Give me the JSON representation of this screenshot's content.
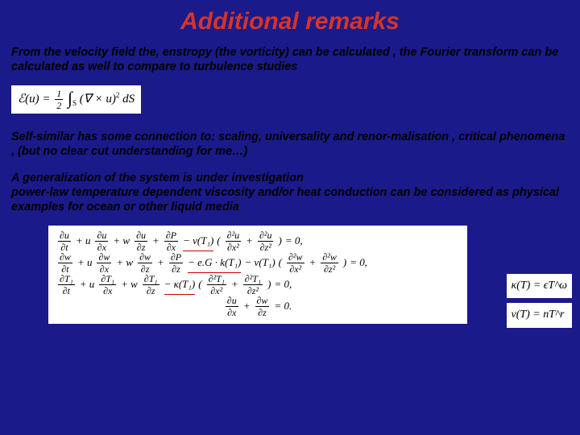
{
  "title": "Additional remarks",
  "para1": "From the velocity field the, enstropy (the vorticity) can be calculated , the Fourier transform can be calculated as well to compare to turbulence studies",
  "para2": "Self-similar has some connection to: scaling, universality and renor-malisation , critical phenomena , (but no clear cut understanding for me…)",
  "para3": "A generalization of the system is under investigation\npower-law temperature dependent viscosity and/or heat conduction can be considered as physical examples for ocean or other liquid media",
  "enstrophy": {
    "lhs": "ℰ(u)",
    "eq": "=",
    "half_num": "1",
    "half_den": "2",
    "int": "∫",
    "int_sub": "S",
    "body": "(∇ × u)",
    "sq": "2",
    "dS": "dS"
  },
  "equations": {
    "row1": {
      "t1_num": "∂u",
      "t1_den": "∂t",
      "p1": "+ u",
      "t2_num": "∂u",
      "t2_den": "∂x",
      "p2": "+ w",
      "t3_num": "∂u",
      "t3_den": "∂z",
      "p3": "+",
      "t4_num": "∂P",
      "t4_den": "∂x",
      "mid": "− ν(T₁)",
      "b1_num": "∂²u",
      "b1_den": "∂x²",
      "pl": "+",
      "b2_num": "∂²u",
      "b2_den": "∂z²",
      "end": "= 0,"
    },
    "row2": {
      "t1_num": "∂w",
      "t1_den": "∂t",
      "p1": "+ u",
      "t2_num": "∂w",
      "t2_den": "∂x",
      "p2": "+ w",
      "t3_num": "∂w",
      "t3_den": "∂z",
      "p3": "+",
      "t4_num": "∂P",
      "t4_den": "∂z",
      "g": "− e.G · k(T₁)",
      "mid": "− ν(T₁)",
      "b1_num": "∂²w",
      "b1_den": "∂x²",
      "pl": "+",
      "b2_num": "∂²w",
      "b2_den": "∂z²",
      "end": "= 0,"
    },
    "row3": {
      "t1_num": "∂T₁",
      "t1_den": "∂t",
      "p1": "+ u",
      "t2_num": "∂T₁",
      "t2_den": "∂x",
      "p2": "+ w",
      "t3_num": "∂T₁",
      "t3_den": "∂z",
      "mid": "− κ(T₁)",
      "b1_num": "∂²T₁",
      "b1_den": "∂x²",
      "pl": "+",
      "b2_num": "∂²T₁",
      "b2_den": "∂z²",
      "end": "= 0,"
    },
    "row4": {
      "t1_num": "∂u",
      "t1_den": "∂x",
      "pl": "+",
      "t2_num": "∂w",
      "t2_den": "∂z",
      "end": "= 0."
    }
  },
  "side": {
    "e1": "κ(T) = ϵT^ω",
    "e2": "ν(T) = nT^r"
  },
  "colors": {
    "background": "#1a1a8a",
    "title": "#d4342a",
    "underline": "#c00"
  }
}
